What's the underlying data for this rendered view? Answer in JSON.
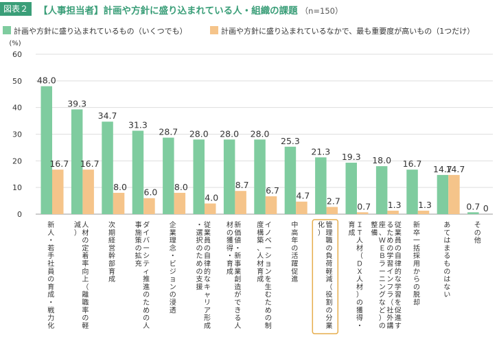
{
  "header": {
    "badge": "図表２",
    "title": "【人事担当者】計画や方針に盛り込まれている人・組織の課題",
    "subtitle": "（n=150）"
  },
  "colors": {
    "series1": "#7fcc9f",
    "series2": "#f5c48a",
    "highlight": "#e6ad4c"
  },
  "chart_data": {
    "type": "bar",
    "ylabel": "(%)",
    "ylim": [
      0,
      60
    ],
    "yticks": [
      0,
      10,
      20,
      30,
      40,
      50,
      60
    ],
    "grid": true,
    "legend_position": "top",
    "highlight_category_index": 9,
    "categories": [
      "新人・若手社員の育成・戦力化",
      "人材の定着率向上（離職率の軽減）",
      "次期経営幹部育成",
      "ダイバーシティ推進のための人事施策の拡充",
      "企業理念・ビジョンの浸透",
      "従業員の自律的なキャリア形成・選択のための支援",
      "新価値・新事業創造ができる人材の獲得・育成",
      "イノベーションを生むための制度構築、人材育成",
      "中高年の活躍促進",
      "管理職の負荷軽減（役割の分業化）",
      "ＩＴ人材（ＤＸ人材）の獲得・育成",
      "従業員の自律的な学習を促進するための学習インフラ（社外講座、ＷＥＢラーニングなど）の整備",
      "新卒一括採用からの脱却",
      "あてはまるものはない",
      "その他"
    ],
    "series": [
      {
        "name": "計画や方針に盛り込まれているもの（いくつでも）",
        "values": [
          48.0,
          39.3,
          34.7,
          31.3,
          28.7,
          28.0,
          28.0,
          28.0,
          25.3,
          21.3,
          19.3,
          18.0,
          16.7,
          14.7,
          0.7
        ],
        "labels": [
          "48.0",
          "39.3",
          "34.7",
          "31.3",
          "28.7",
          "28.0",
          "28.0",
          "28.0",
          "25.3",
          "21.3",
          "19.3",
          "18.0",
          "16.7",
          "14.7",
          "0.7"
        ]
      },
      {
        "name": "計画や方針に盛り込まれているなかで、最も重要度が高いもの（1つだけ）",
        "values": [
          16.7,
          16.7,
          8.0,
          6.0,
          8.0,
          4.0,
          8.7,
          6.7,
          4.7,
          2.7,
          0.7,
          1.3,
          1.3,
          14.7,
          0
        ],
        "labels": [
          "16.7",
          "16.7",
          "8.0",
          "6.0",
          "8.0",
          "4.0",
          "8.7",
          "6.7",
          "4.7",
          "2.7",
          "0.7",
          "1.3",
          "1.3",
          "14.7",
          "0"
        ]
      }
    ]
  }
}
